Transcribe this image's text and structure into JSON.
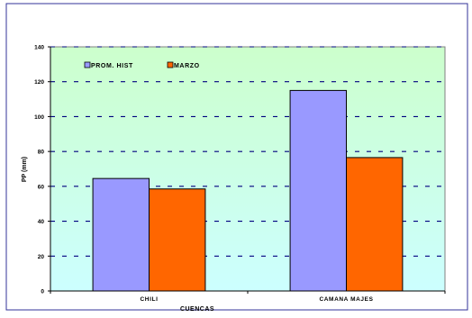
{
  "chart_data": {
    "type": "bar",
    "categories": [
      "CHILI",
      "CAMANA MAJES"
    ],
    "series": [
      {
        "name": "PROM. HIST",
        "values": [
          64.5,
          115
        ],
        "color": "#9999ff"
      },
      {
        "name": "MARZO",
        "values": [
          58.5,
          76.5
        ],
        "color": "#ff6600"
      }
    ],
    "xlabel": "CUENCAS",
    "ylabel": "PP (mm)",
    "ylim": [
      0,
      140
    ],
    "yticks": [
      "0",
      "20",
      "40",
      "60",
      "80",
      "100",
      "120",
      "140"
    ],
    "grid": true,
    "legend": "top-left",
    "plot_background": [
      "#ccffcc",
      "#ccffff"
    ]
  }
}
